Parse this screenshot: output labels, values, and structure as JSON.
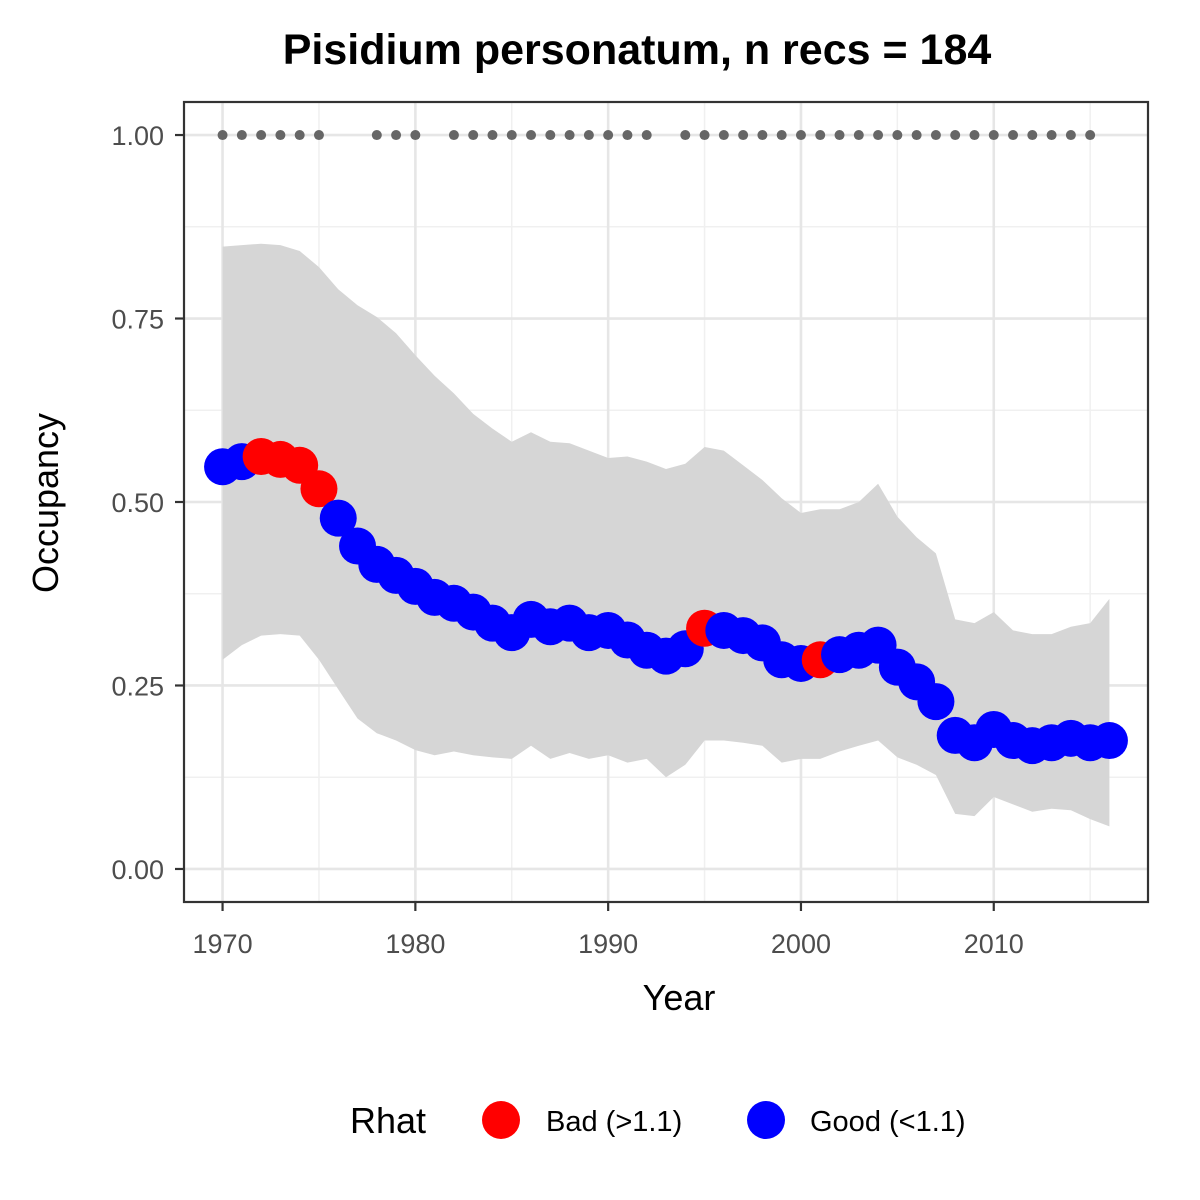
{
  "chart_data": {
    "type": "line",
    "title": "Pisidium personatum, n recs = 184",
    "xlabel": "Year",
    "ylabel": "Occupancy",
    "xlim": [
      1968,
      2018
    ],
    "ylim": [
      -0.045,
      1.045
    ],
    "x_ticks": [
      1970,
      1980,
      1990,
      2000,
      2010
    ],
    "x_tick_labels": [
      "1970",
      "1980",
      "1990",
      "2000",
      "2010"
    ],
    "y_ticks": [
      0,
      0.25,
      0.5,
      0.75,
      1.0
    ],
    "y_tick_labels": [
      "0.00",
      "0.25",
      "0.50",
      "0.75",
      "1.00"
    ],
    "grid": true,
    "legend": {
      "title": "Rhat",
      "position": "bottom",
      "entries": [
        {
          "key": "bad",
          "label": "Bad (>1.1)",
          "color": "#ff0000"
        },
        {
          "key": "good",
          "label": "Good (<1.1)",
          "color": "#0000ff"
        }
      ]
    },
    "colors": {
      "bad": "#ff0000",
      "good": "#0000ff",
      "ribbon": "#d6d6d6",
      "records": "#666666"
    },
    "series": [
      {
        "type": "points",
        "x": [
          1970,
          1971,
          1972,
          1973,
          1974,
          1975,
          1976,
          1977,
          1978,
          1979,
          1980,
          1981,
          1982,
          1983,
          1984,
          1985,
          1986,
          1987,
          1988,
          1989,
          1990,
          1991,
          1992,
          1993,
          1994,
          1995,
          1996,
          1997,
          1998,
          1999,
          2000,
          2001,
          2002,
          2003,
          2004,
          2005,
          2006,
          2007,
          2008,
          2009,
          2010,
          2011,
          2012,
          2013,
          2014,
          2015,
          2016
        ],
        "values": [
          0.548,
          0.555,
          0.562,
          0.558,
          0.55,
          0.518,
          0.478,
          0.44,
          0.415,
          0.4,
          0.385,
          0.37,
          0.362,
          0.35,
          0.335,
          0.322,
          0.34,
          0.33,
          0.335,
          0.322,
          0.325,
          0.312,
          0.298,
          0.29,
          0.3,
          0.328,
          0.325,
          0.318,
          0.308,
          0.285,
          0.28,
          0.285,
          0.292,
          0.298,
          0.305,
          0.275,
          0.255,
          0.228,
          0.182,
          0.172,
          0.19,
          0.175,
          0.168,
          0.172,
          0.178,
          0.172,
          0.175
        ],
        "rhat": [
          "good",
          "good",
          "bad",
          "bad",
          "bad",
          "bad",
          "good",
          "good",
          "good",
          "good",
          "good",
          "good",
          "good",
          "good",
          "good",
          "good",
          "good",
          "good",
          "good",
          "good",
          "good",
          "good",
          "good",
          "good",
          "good",
          "bad",
          "good",
          "good",
          "good",
          "good",
          "good",
          "bad",
          "good",
          "good",
          "good",
          "good",
          "good",
          "good",
          "good",
          "good",
          "good",
          "good",
          "good",
          "good",
          "good",
          "good",
          "good"
        ],
        "lower": [
          0.285,
          0.305,
          0.318,
          0.32,
          0.318,
          0.285,
          0.245,
          0.205,
          0.185,
          0.175,
          0.162,
          0.155,
          0.16,
          0.155,
          0.152,
          0.15,
          0.168,
          0.15,
          0.158,
          0.15,
          0.155,
          0.145,
          0.15,
          0.125,
          0.142,
          0.175,
          0.175,
          0.172,
          0.168,
          0.145,
          0.15,
          0.15,
          0.16,
          0.168,
          0.175,
          0.152,
          0.142,
          0.128,
          0.075,
          0.072,
          0.098,
          0.088,
          0.078,
          0.082,
          0.08,
          0.068,
          0.058
        ],
        "upper": [
          0.848,
          0.85,
          0.852,
          0.85,
          0.842,
          0.82,
          0.79,
          0.768,
          0.752,
          0.73,
          0.7,
          0.672,
          0.648,
          0.62,
          0.6,
          0.582,
          0.595,
          0.582,
          0.58,
          0.57,
          0.56,
          0.562,
          0.555,
          0.545,
          0.552,
          0.575,
          0.57,
          0.55,
          0.53,
          0.505,
          0.485,
          0.49,
          0.49,
          0.5,
          0.525,
          0.48,
          0.452,
          0.43,
          0.34,
          0.335,
          0.35,
          0.325,
          0.32,
          0.32,
          0.33,
          0.335,
          0.368
        ]
      },
      {
        "type": "records",
        "y_value": 1.0,
        "x": [
          1970,
          1971,
          1972,
          1973,
          1974,
          1975,
          1978,
          1979,
          1980,
          1982,
          1983,
          1984,
          1985,
          1986,
          1987,
          1988,
          1989,
          1990,
          1991,
          1992,
          1994,
          1995,
          1996,
          1997,
          1998,
          1999,
          2000,
          2001,
          2002,
          2003,
          2004,
          2005,
          2006,
          2007,
          2008,
          2009,
          2010,
          2011,
          2012,
          2013,
          2014,
          2015
        ]
      }
    ]
  }
}
